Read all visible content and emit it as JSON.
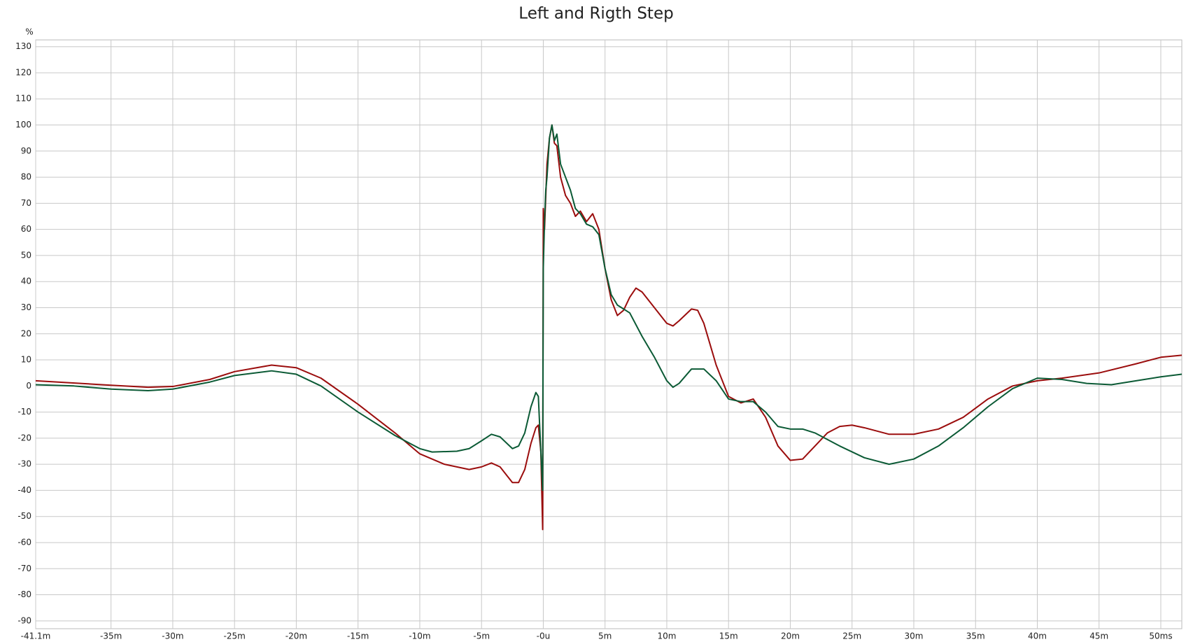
{
  "chart_data": {
    "type": "line",
    "title": "Left and Rigth Step",
    "y_label": "%",
    "xlim": [
      -41.1,
      51.7
    ],
    "ylim": [
      -93,
      132.6
    ],
    "grid": true,
    "xticks": [
      {
        "value": -41.1,
        "label": "-41.1m"
      },
      {
        "value": -35,
        "label": "-35m"
      },
      {
        "value": -30,
        "label": "-30m"
      },
      {
        "value": -25,
        "label": "-25m"
      },
      {
        "value": -20,
        "label": "-20m"
      },
      {
        "value": -15,
        "label": "-15m"
      },
      {
        "value": -10,
        "label": "-10m"
      },
      {
        "value": -5,
        "label": "-5m"
      },
      {
        "value": 0,
        "label": "-0u"
      },
      {
        "value": 5,
        "label": "5m"
      },
      {
        "value": 10,
        "label": "10m"
      },
      {
        "value": 15,
        "label": "15m"
      },
      {
        "value": 20,
        "label": "20m"
      },
      {
        "value": 25,
        "label": "25m"
      },
      {
        "value": 30,
        "label": "30m"
      },
      {
        "value": 35,
        "label": "35m"
      },
      {
        "value": 40,
        "label": "40m"
      },
      {
        "value": 45,
        "label": "45m"
      },
      {
        "value": 50,
        "label": "50ms"
      }
    ],
    "yticks": [
      130,
      120,
      110,
      100,
      90,
      80,
      70,
      60,
      50,
      40,
      30,
      20,
      10,
      0,
      -10,
      -20,
      -30,
      -40,
      -50,
      -60,
      -70,
      -80,
      -90
    ],
    "series": [
      {
        "color": "#9b0d0d",
        "x": [
          -41.1,
          -35,
          -32,
          -30,
          -27,
          -25,
          -22,
          -20,
          -18,
          -15,
          -12,
          -10,
          -8,
          -6,
          -5,
          -4.2,
          -3.5,
          -2.5,
          -2,
          -1.5,
          -1,
          -0.6,
          -0.4,
          -0.2,
          -0.05,
          0,
          0.1,
          0.3,
          0.5,
          0.7,
          0.9,
          1.1,
          1.4,
          1.8,
          2.2,
          2.6,
          3,
          3.5,
          4,
          4.5,
          5,
          5.5,
          6,
          6.5,
          7,
          7.5,
          8,
          9,
          10,
          10.5,
          11,
          12,
          12.5,
          13,
          14,
          15,
          16,
          17,
          18,
          19,
          20,
          21,
          22,
          23,
          24,
          25,
          26,
          28,
          30,
          32,
          34,
          36,
          38,
          40,
          42,
          45,
          48,
          50,
          51.7
        ],
        "values": [
          2,
          0.3,
          -0.5,
          -0.2,
          2.5,
          5.5,
          8,
          7,
          3,
          -7,
          -18,
          -26,
          -30,
          -32,
          -31,
          -29.5,
          -31,
          -37,
          -37,
          -32,
          -22,
          -16,
          -15,
          -25,
          -55,
          68,
          60,
          85,
          95,
          100,
          93,
          92,
          80,
          73,
          70,
          65,
          67,
          63,
          66,
          60,
          45,
          33,
          27,
          29,
          34,
          37.5,
          36,
          30,
          24,
          23,
          25,
          29.5,
          29,
          24,
          8,
          -4,
          -6.5,
          -5,
          -12,
          -23,
          -28.5,
          -28,
          -23,
          -18,
          -15.5,
          -15,
          -16,
          -18.5,
          -18.5,
          -16.5,
          -12,
          -5,
          0,
          2,
          3,
          5,
          8.5,
          11,
          11.8
        ]
      },
      {
        "color": "#0b5a35",
        "x": [
          -41.1,
          -38,
          -35,
          -32,
          -30,
          -27,
          -25,
          -22,
          -20,
          -18,
          -15,
          -12,
          -10,
          -9,
          -7,
          -6,
          -5,
          -4.2,
          -3.5,
          -2.5,
          -2,
          -1.5,
          -1,
          -0.6,
          -0.4,
          -0.2,
          -0.05,
          0,
          0.1,
          0.2,
          0.3,
          0.5,
          0.7,
          0.9,
          1.1,
          1.4,
          1.8,
          2.2,
          2.6,
          3,
          3.5,
          4,
          4.5,
          5,
          5.5,
          6,
          7,
          8,
          9,
          10,
          10.5,
          11,
          12,
          13,
          14,
          15,
          16,
          17,
          18,
          19,
          20,
          21,
          22,
          24,
          26,
          28,
          30,
          32,
          34,
          36,
          38,
          40,
          42,
          44,
          46,
          48,
          50,
          51.7
        ],
        "values": [
          0.5,
          0,
          -1.2,
          -1.8,
          -1.2,
          1.5,
          4,
          5.8,
          4.5,
          0,
          -10,
          -19,
          -24,
          -25.3,
          -25,
          -24,
          -21,
          -18.5,
          -19.5,
          -24,
          -23,
          -18,
          -8,
          -2.5,
          -4,
          -25,
          -40,
          45,
          63,
          75,
          80,
          95,
          100,
          94,
          96.5,
          85,
          80,
          75,
          68,
          66,
          62,
          61,
          58,
          45,
          35,
          31,
          28,
          19,
          11,
          2,
          -0.5,
          1,
          6.5,
          6.5,
          2,
          -5,
          -6,
          -6,
          -10,
          -15.5,
          -16.5,
          -16.5,
          -18,
          -23,
          -27.5,
          -30,
          -28,
          -23,
          -16,
          -8,
          -1,
          3,
          2.5,
          1,
          0.5,
          2,
          3.5,
          4.5
        ]
      }
    ]
  }
}
